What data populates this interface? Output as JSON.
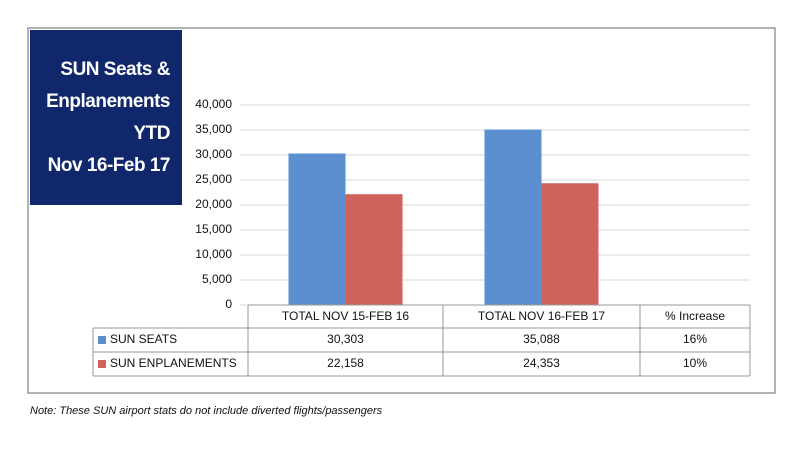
{
  "chart_data": {
    "type": "bar",
    "title_lines": [
      "SUN Seats &",
      "Enplanements",
      "YTD",
      "Nov 16-Feb 17"
    ],
    "categories": [
      "TOTAL NOV 15-FEB 16",
      "TOTAL NOV 16-FEB 17"
    ],
    "series": [
      {
        "name": "SUN SEATS",
        "color": "#5b8fcf",
        "values": [
          30303,
          35088
        ],
        "value_labels": [
          "30,303",
          "35,088"
        ]
      },
      {
        "name": "SUN ENPLANEMENTS",
        "color": "#cf625b",
        "values": [
          22158,
          24353
        ],
        "value_labels": [
          "22,158",
          "24,353"
        ]
      }
    ],
    "increase": {
      "header": "% Increase",
      "values": [
        16,
        10
      ],
      "value_labels": [
        "16%",
        "10%"
      ]
    },
    "ylim": [
      0,
      40000
    ],
    "yticks": [
      0,
      {
        "value": 5000,
        "label": "5,000"
      },
      {
        "value": 10000,
        "label": "10,000"
      },
      {
        "value": 15000,
        "label": "15,000"
      },
      {
        "value": 20000,
        "label": "20,000"
      },
      {
        "value": 25000,
        "label": "25,000"
      },
      {
        "value": 30000,
        "label": "30,000"
      },
      {
        "value": 35000,
        "label": "35,000"
      },
      {
        "value": 40000,
        "label": "40,000"
      }
    ],
    "grid": true,
    "note": "Note: These SUN airport stats do not include diverted flights/passengers"
  }
}
